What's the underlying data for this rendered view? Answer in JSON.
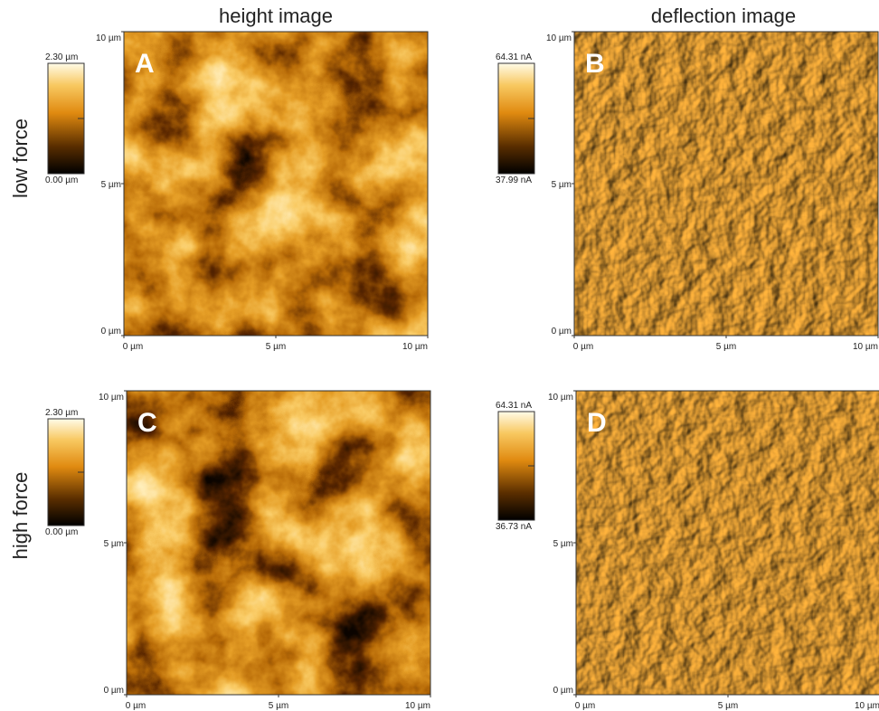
{
  "columns": [
    "height image",
    "deflection image"
  ],
  "rows": [
    "low force",
    "high force"
  ],
  "panels": [
    {
      "letter": "A",
      "colorbar": {
        "max": "2.30 µm",
        "min": "0.00 µm"
      },
      "y_ticks": [
        "10 µm",
        "5 µm",
        "0 µm"
      ],
      "x_ticks": [
        "0 µm",
        "5 µm",
        "10 µm"
      ]
    },
    {
      "letter": "B",
      "colorbar": {
        "max": "64.31 nA",
        "min": "37.99 nA"
      },
      "y_ticks": [
        "10 µm",
        "5 µm",
        "0 µm"
      ],
      "x_ticks": [
        "0 µm",
        "5 µm",
        "10 µm"
      ]
    },
    {
      "letter": "C",
      "colorbar": {
        "max": "2.30 µm",
        "min": "0.00 µm"
      },
      "y_ticks": [
        "10 µm",
        "5 µm",
        "0 µm"
      ],
      "x_ticks": [
        "0 µm",
        "5 µm",
        "10 µm"
      ]
    },
    {
      "letter": "D",
      "colorbar": {
        "max": "64.31 nA",
        "min": "36.73 nA"
      },
      "y_ticks": [
        "10 µm",
        "5 µm",
        "0 µm"
      ],
      "x_ticks": [
        "0 µm",
        "5 µm",
        "10 µm"
      ]
    }
  ]
}
